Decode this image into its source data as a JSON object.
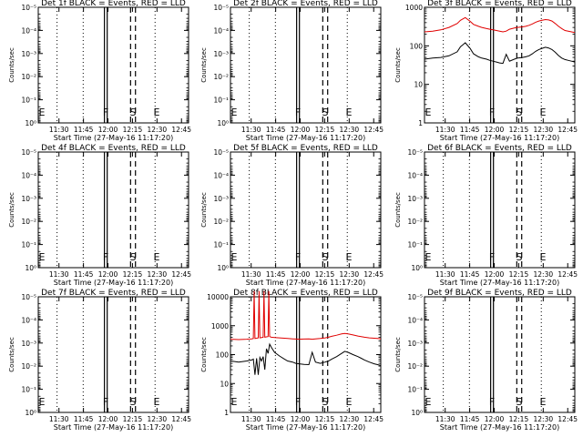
{
  "chart_data": [
    {
      "type": "line",
      "title": "Det 1f BLACK = Events, RED = LLD",
      "ylabel": "Counts/sec",
      "xlabel": "Start Time (27-May-16 11:17:20)",
      "x_ticks": [
        "11:30",
        "11:45",
        "12:00",
        "12:15",
        "12:30",
        "12:45"
      ],
      "y_scale": "log",
      "y_ticks": [
        "10⁰",
        "10⁻¹",
        "10⁻²",
        "10⁻³",
        "10⁻⁴",
        "10⁻⁵"
      ],
      "ylim": [
        1,
        1e-05
      ],
      "markers": {
        "E_left": "E",
        "F": "F",
        "S": "S",
        "E": "E"
      },
      "series": []
    },
    {
      "type": "line",
      "title": "Det 2f BLACK = Events, RED = LLD",
      "ylabel": "Counts/sec",
      "xlabel": "Start Time (27-May-16 11:17:20)",
      "x_ticks": [
        "11:30",
        "11:45",
        "12:00",
        "12:15",
        "12:30",
        "12:45"
      ],
      "y_scale": "log",
      "y_ticks": [
        "10⁰",
        "10⁻¹",
        "10⁻²",
        "10⁻³",
        "10⁻⁴",
        "10⁻⁵"
      ],
      "ylim": [
        1,
        1e-05
      ],
      "markers": {
        "E_left": "E",
        "F": "F",
        "S": "S",
        "E": "E"
      },
      "series": []
    },
    {
      "type": "line",
      "title": "Det 3f BLACK = Events, RED = LLD",
      "ylabel": "Counts/sec",
      "xlabel": "Start Time (27-May-16 11:17:20)",
      "x_ticks": [
        "11:30",
        "11:45",
        "12:00",
        "12:15",
        "12:30",
        "12:45"
      ],
      "y_scale": "log",
      "y_ticks": [
        "1",
        "10",
        "100",
        "1000"
      ],
      "ylim": [
        1,
        1000
      ],
      "markers": {
        "E_left": "E",
        "F": "F",
        "S": "S",
        "E": "E"
      },
      "series": [
        {
          "color": "#e00000",
          "x": [
            0,
            5,
            10,
            15,
            20,
            22,
            25,
            28,
            30,
            33,
            35,
            38,
            40,
            42,
            44,
            46,
            48,
            50,
            52,
            55,
            57,
            60,
            62,
            64,
            66,
            68,
            70,
            72,
            74,
            76,
            78,
            80,
            82,
            84,
            86,
            88,
            90,
            92
          ],
          "y": [
            230,
            240,
            260,
            300,
            380,
            460,
            540,
            430,
            360,
            320,
            300,
            280,
            270,
            260,
            250,
            240,
            230,
            240,
            270,
            290,
            300,
            310,
            320,
            340,
            370,
            410,
            440,
            460,
            480,
            470,
            440,
            380,
            320,
            280,
            250,
            240,
            230,
            220
          ]
        },
        {
          "color": "#000000",
          "x": [
            0,
            5,
            10,
            15,
            20,
            22,
            25,
            28,
            30,
            33,
            35,
            38,
            40,
            42,
            44,
            46,
            48,
            50,
            52,
            55,
            57,
            60,
            62,
            64,
            66,
            68,
            70,
            72,
            74,
            76,
            78,
            80,
            82,
            84,
            86,
            88,
            90,
            92
          ],
          "y": [
            45,
            48,
            50,
            55,
            70,
            95,
            120,
            85,
            62,
            52,
            48,
            45,
            42,
            40,
            38,
            36,
            35,
            60,
            40,
            45,
            48,
            50,
            52,
            55,
            62,
            72,
            80,
            86,
            92,
            88,
            80,
            68,
            56,
            48,
            44,
            42,
            40,
            38
          ]
        }
      ]
    },
    {
      "type": "line",
      "title": "Det 4f BLACK = Events, RED = LLD",
      "ylabel": "Counts/sec",
      "xlabel": "Start Time (27-May-16 11:17:20)",
      "x_ticks": [
        "11:30",
        "11:45",
        "12:00",
        "12:15",
        "12:30",
        "12:45"
      ],
      "y_scale": "log",
      "y_ticks": [
        "10⁰",
        "10⁻¹",
        "10⁻²",
        "10⁻³",
        "10⁻⁴",
        "10⁻⁵"
      ],
      "ylim": [
        1,
        1e-05
      ],
      "markers": {
        "E_left": "E",
        "F": "F",
        "S": "S",
        "E": "E"
      },
      "series": []
    },
    {
      "type": "line",
      "title": "Det 5f BLACK = Events, RED = LLD",
      "ylabel": "Counts/sec",
      "xlabel": "Start Time (27-May-16 11:17:20)",
      "x_ticks": [
        "11:30",
        "11:45",
        "12:00",
        "12:15",
        "12:30",
        "12:45"
      ],
      "y_scale": "log",
      "y_ticks": [
        "10⁰",
        "10⁻¹",
        "10⁻²",
        "10⁻³",
        "10⁻⁴",
        "10⁻⁵"
      ],
      "ylim": [
        1,
        1e-05
      ],
      "markers": {
        "E_left": "E",
        "F": "F",
        "S": "S",
        "E": "E"
      },
      "series": []
    },
    {
      "type": "line",
      "title": "Det 6f BLACK = Events, RED = LLD",
      "ylabel": "Counts/sec",
      "xlabel": "Start Time (27-May-16 11:17:20)",
      "x_ticks": [
        "11:30",
        "11:45",
        "12:00",
        "12:15",
        "12:30",
        "12:45"
      ],
      "y_scale": "log",
      "y_ticks": [
        "10⁰",
        "10⁻¹",
        "10⁻²",
        "10⁻³",
        "10⁻⁴",
        "10⁻⁵"
      ],
      "ylim": [
        1,
        1e-05
      ],
      "markers": {
        "E_left": "E",
        "F": "F",
        "S": "S",
        "E": "E"
      },
      "series": []
    },
    {
      "type": "line",
      "title": "Det 7f BLACK = Events, RED = LLD",
      "ylabel": "Counts/sec",
      "xlabel": "Start Time (27-May-16 11:17:20)",
      "x_ticks": [
        "11:30",
        "11:45",
        "12:00",
        "12:15",
        "12:30",
        "12:45"
      ],
      "y_scale": "log",
      "y_ticks": [
        "10⁰",
        "10⁻¹",
        "10⁻²",
        "10⁻³",
        "10⁻⁴",
        "10⁻⁵"
      ],
      "ylim": [
        1,
        1e-05
      ],
      "markers": {
        "E_left": "E",
        "F": "F",
        "S": "S",
        "E": "E"
      },
      "series": []
    },
    {
      "type": "line",
      "title": "Det 8f BLACK = Events, RED = LLD",
      "ylabel": "Counts/sec",
      "xlabel": "Start Time (27-May-16 11:17:20)",
      "x_ticks": [
        "11:30",
        "11:45",
        "12:00",
        "12:15",
        "12:30",
        "12:45"
      ],
      "y_scale": "log",
      "y_ticks": [
        "1",
        "10",
        "100",
        "1000",
        "10000"
      ],
      "ylim": [
        1,
        10000
      ],
      "markers": {
        "E_left": "E",
        "F": "F",
        "S": "S",
        "E": "E"
      },
      "series": [
        {
          "color": "#e00000",
          "x": [
            0,
            5,
            10,
            13,
            14,
            14.5,
            15,
            16,
            17,
            17.5,
            18,
            19,
            20,
            20.5,
            21,
            22,
            23,
            23.5,
            24,
            25,
            27,
            30,
            33,
            35,
            38,
            40,
            42,
            45,
            48,
            50,
            52,
            55,
            58,
            60,
            62,
            65,
            68,
            70,
            72,
            75,
            78,
            80,
            82,
            85,
            88,
            90,
            92
          ],
          "y": [
            340,
            330,
            340,
            350,
            360,
            20000,
            360,
            370,
            380,
            20000,
            380,
            390,
            400,
            20000,
            400,
            410,
            420,
            20000,
            420,
            400,
            390,
            380,
            370,
            360,
            350,
            345,
            340,
            345,
            350,
            340,
            350,
            360,
            380,
            400,
            430,
            470,
            520,
            540,
            520,
            480,
            440,
            420,
            400,
            380,
            370,
            360,
            350
          ]
        },
        {
          "color": "#000000",
          "x": [
            0,
            5,
            10,
            13,
            14,
            15,
            16,
            17,
            18,
            19,
            20,
            21,
            22,
            23,
            24,
            25,
            27,
            30,
            33,
            35,
            38,
            40,
            42,
            45,
            48,
            50,
            52,
            55,
            58,
            60,
            62,
            65,
            68,
            70,
            72,
            75,
            78,
            80,
            82,
            85,
            88,
            90,
            92
          ],
          "y": [
            60,
            55,
            60,
            65,
            70,
            20,
            75,
            20,
            80,
            60,
            85,
            30,
            160,
            110,
            230,
            180,
            120,
            90,
            70,
            60,
            55,
            50,
            48,
            46,
            45,
            120,
            55,
            50,
            55,
            60,
            70,
            85,
            110,
            130,
            120,
            100,
            85,
            75,
            65,
            55,
            48,
            45,
            42
          ]
        }
      ]
    },
    {
      "type": "line",
      "title": "Det 9f BLACK = Events, RED = LLD",
      "ylabel": "Counts/sec",
      "xlabel": "Start Time (27-May-16 11:17:20)",
      "x_ticks": [
        "11:30",
        "11:45",
        "12:00",
        "12:15",
        "12:30",
        "12:45"
      ],
      "y_scale": "log",
      "y_ticks": [
        "10⁰",
        "10⁻¹",
        "10⁻²",
        "10⁻³",
        "10⁻⁴",
        "10⁻⁵"
      ],
      "ylim": [
        1,
        1e-05
      ],
      "markers": {
        "E_left": "E",
        "F": "F",
        "S": "S",
        "E": "E"
      },
      "series": []
    }
  ]
}
